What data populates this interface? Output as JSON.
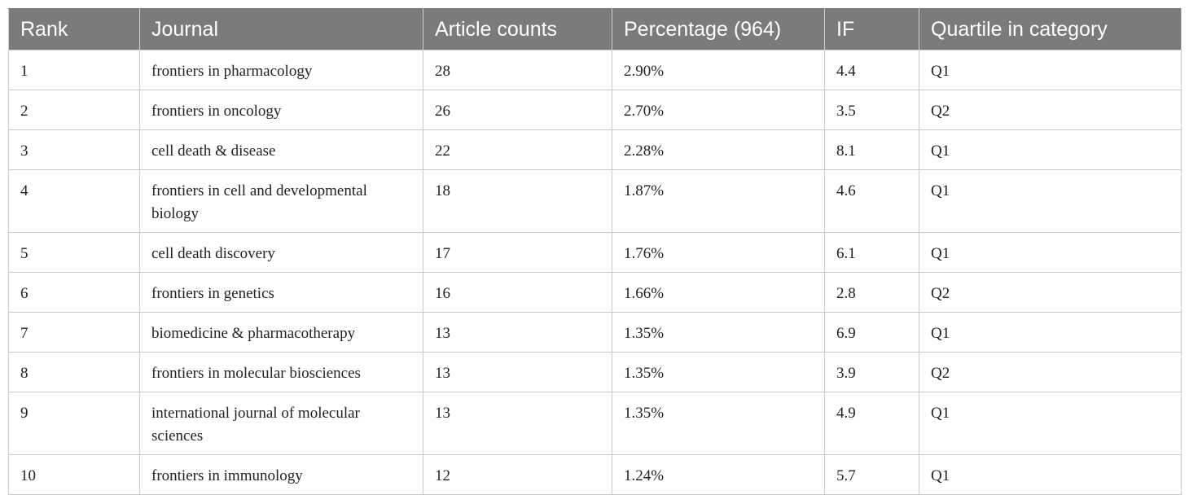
{
  "table": {
    "headers": [
      "Rank",
      "Journal",
      "Article counts",
      "Percentage (964)",
      "IF",
      "Quartile in category"
    ],
    "rows": [
      {
        "rank": "1",
        "journal": "frontiers in pharmacology",
        "count": "28",
        "percentage": "2.90%",
        "if": "4.4",
        "quartile": "Q1"
      },
      {
        "rank": "2",
        "journal": "frontiers in oncology",
        "count": "26",
        "percentage": "2.70%",
        "if": "3.5",
        "quartile": "Q2"
      },
      {
        "rank": "3",
        "journal": "cell death & disease",
        "count": "22",
        "percentage": "2.28%",
        "if": "8.1",
        "quartile": "Q1"
      },
      {
        "rank": "4",
        "journal": "frontiers in cell and developmental biology",
        "count": "18",
        "percentage": "1.87%",
        "if": "4.6",
        "quartile": "Q1"
      },
      {
        "rank": "5",
        "journal": "cell death discovery",
        "count": "17",
        "percentage": "1.76%",
        "if": "6.1",
        "quartile": "Q1"
      },
      {
        "rank": "6",
        "journal": "frontiers in genetics",
        "count": "16",
        "percentage": "1.66%",
        "if": "2.8",
        "quartile": "Q2"
      },
      {
        "rank": "7",
        "journal": "biomedicine & pharmacotherapy",
        "count": "13",
        "percentage": "1.35%",
        "if": "6.9",
        "quartile": "Q1"
      },
      {
        "rank": "8",
        "journal": "frontiers in molecular biosciences",
        "count": "13",
        "percentage": "1.35%",
        "if": "3.9",
        "quartile": "Q2"
      },
      {
        "rank": "9",
        "journal": "international journal of molecular sciences",
        "count": "13",
        "percentage": "1.35%",
        "if": "4.9",
        "quartile": "Q1"
      },
      {
        "rank": "10",
        "journal": "frontiers in immunology",
        "count": "12",
        "percentage": "1.24%",
        "if": "5.7",
        "quartile": "Q1"
      }
    ]
  },
  "colors": {
    "header_background": "#7b7b7b",
    "header_text": "#ffffff",
    "border": "#c9c9c9"
  }
}
